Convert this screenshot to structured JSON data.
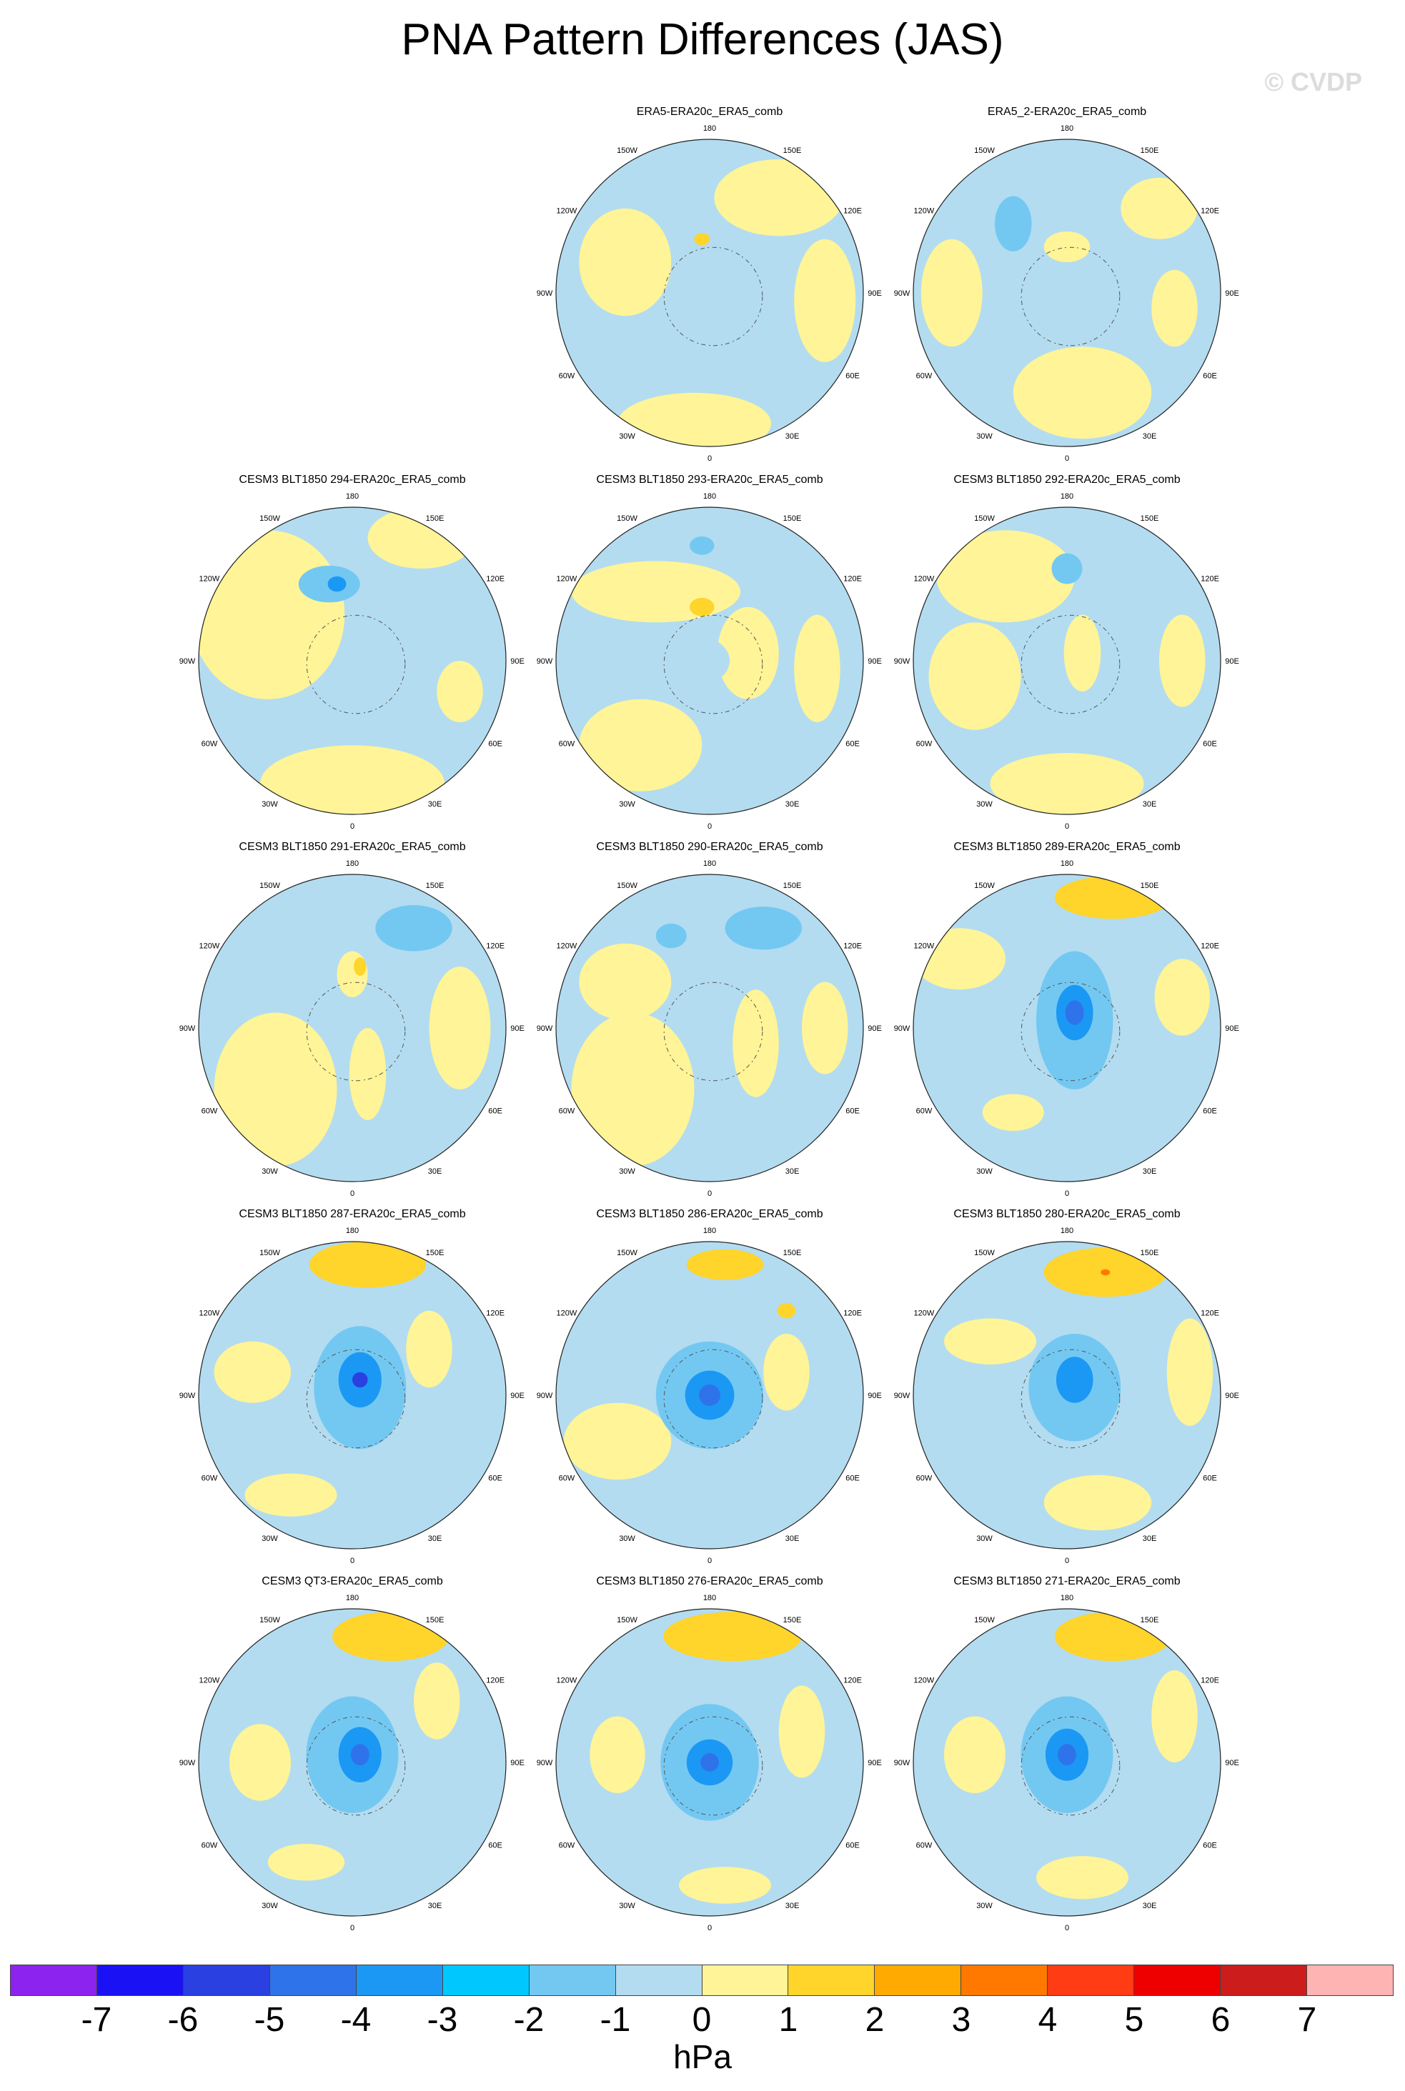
{
  "figure": {
    "title": "PNA Pattern Differences (JAS)",
    "watermark": "© CVDP",
    "units": "hPa"
  },
  "longitude_labels": [
    "180",
    "150E",
    "120E",
    "90E",
    "60E",
    "30E",
    "0",
    "30W",
    "60W",
    "90W",
    "120W",
    "150W"
  ],
  "colors": {
    "ocean_neutral_neg": "#b3dcf0",
    "neutral_pos": "#fff497",
    "ocean_outline": "#555555"
  },
  "colorbar": {
    "ticks": [
      "-7",
      "-6",
      "-5",
      "-4",
      "-3",
      "-2",
      "-1",
      "0",
      "1",
      "2",
      "3",
      "4",
      "5",
      "6",
      "7"
    ],
    "colors": [
      "#8c23ee",
      "#1a12f4",
      "#2a40e0",
      "#2f73ea",
      "#1b98f4",
      "#00c8ff",
      "#73c8f2",
      "#b3dcf0",
      "#fff497",
      "#ffd42b",
      "#ffaa00",
      "#ff7800",
      "#ff3c14",
      "#ee0000",
      "#cc1c1c",
      "#ffb4b4"
    ]
  },
  "panels": [
    {
      "title": "ERA5-ERA20c_ERA5_comb",
      "row": 0,
      "col": 1,
      "blobs": [
        [
          "#fff497",
          0.45,
          0.62,
          0.42,
          0.25
        ],
        [
          "#fff497",
          -0.55,
          0.2,
          0.3,
          0.35
        ],
        [
          "#fff497",
          0.75,
          -0.05,
          0.2,
          0.4
        ],
        [
          "#fff497",
          -0.1,
          -0.85,
          0.5,
          0.2
        ],
        [
          "#ffd42b",
          -0.05,
          0.35,
          0.05,
          0.04
        ],
        [
          "#b3dcf0",
          -0.05,
          0.05,
          0.22,
          0.22
        ]
      ]
    },
    {
      "title": "ERA5_2-ERA20c_ERA5_comb",
      "row": 0,
      "col": 2,
      "blobs": [
        [
          "#73c8f2",
          -0.35,
          0.45,
          0.12,
          0.18
        ],
        [
          "#fff497",
          0.6,
          0.55,
          0.25,
          0.2
        ],
        [
          "#fff497",
          -0.75,
          0.0,
          0.2,
          0.35
        ],
        [
          "#fff497",
          0.1,
          -0.65,
          0.45,
          0.3
        ],
        [
          "#fff497",
          0.7,
          -0.1,
          0.15,
          0.25
        ],
        [
          "#fff497",
          0.0,
          0.3,
          0.15,
          0.1
        ]
      ]
    },
    {
      "title": "CESM3 BLT1850 294-ERA20c_ERA5_comb",
      "row": 1,
      "col": 0,
      "blobs": [
        [
          "#fff497",
          -0.55,
          0.3,
          0.5,
          0.55
        ],
        [
          "#fff497",
          0.45,
          0.8,
          0.35,
          0.2
        ],
        [
          "#fff497",
          0.0,
          -0.8,
          0.6,
          0.25
        ],
        [
          "#73c8f2",
          -0.15,
          0.5,
          0.2,
          0.12
        ],
        [
          "#1b98f4",
          -0.1,
          0.5,
          0.06,
          0.05
        ],
        [
          "#fff497",
          0.7,
          -0.2,
          0.15,
          0.2
        ]
      ]
    },
    {
      "title": "CESM3 BLT1850 293-ERA20c_ERA5_comb",
      "row": 1,
      "col": 1,
      "blobs": [
        [
          "#fff497",
          -0.35,
          0.45,
          0.55,
          0.2
        ],
        [
          "#fff497",
          0.25,
          0.05,
          0.2,
          0.3
        ],
        [
          "#fff497",
          -0.45,
          -0.55,
          0.4,
          0.3
        ],
        [
          "#fff497",
          0.7,
          -0.05,
          0.15,
          0.35
        ],
        [
          "#73c8f2",
          -0.05,
          0.75,
          0.08,
          0.06
        ],
        [
          "#ffd42b",
          -0.05,
          0.35,
          0.08,
          0.06
        ],
        [
          "#b3dcf0",
          -0.05,
          0.0,
          0.18,
          0.15
        ]
      ]
    },
    {
      "title": "CESM3 BLT1850 292-ERA20c_ERA5_comb",
      "row": 1,
      "col": 2,
      "blobs": [
        [
          "#fff497",
          -0.4,
          0.55,
          0.45,
          0.3
        ],
        [
          "#fff497",
          -0.6,
          -0.1,
          0.3,
          0.35
        ],
        [
          "#fff497",
          0.0,
          -0.8,
          0.5,
          0.2
        ],
        [
          "#fff497",
          0.1,
          0.05,
          0.12,
          0.25
        ],
        [
          "#fff497",
          0.75,
          0.0,
          0.15,
          0.3
        ],
        [
          "#73c8f2",
          0.0,
          0.6,
          0.1,
          0.1
        ]
      ]
    },
    {
      "title": "CESM3 BLT1850 291-ERA20c_ERA5_comb",
      "row": 2,
      "col": 0,
      "blobs": [
        [
          "#fff497",
          -0.5,
          -0.4,
          0.4,
          0.5
        ],
        [
          "#fff497",
          0.7,
          0.0,
          0.2,
          0.4
        ],
        [
          "#fff497",
          0.1,
          -0.3,
          0.12,
          0.3
        ],
        [
          "#fff497",
          0.0,
          0.35,
          0.1,
          0.15
        ],
        [
          "#73c8f2",
          0.4,
          0.65,
          0.25,
          0.15
        ],
        [
          "#ffd42b",
          0.05,
          0.4,
          0.04,
          0.06
        ]
      ]
    },
    {
      "title": "CESM3 BLT1850 290-ERA20c_ERA5_comb",
      "row": 2,
      "col": 1,
      "blobs": [
        [
          "#fff497",
          -0.5,
          -0.4,
          0.4,
          0.5
        ],
        [
          "#fff497",
          -0.55,
          0.3,
          0.3,
          0.25
        ],
        [
          "#fff497",
          0.3,
          -0.1,
          0.15,
          0.35
        ],
        [
          "#fff497",
          0.75,
          0.0,
          0.15,
          0.3
        ],
        [
          "#73c8f2",
          0.35,
          0.65,
          0.25,
          0.14
        ],
        [
          "#73c8f2",
          -0.25,
          0.6,
          0.1,
          0.08
        ]
      ]
    },
    {
      "title": "CESM3 BLT1850 289-ERA20c_ERA5_comb",
      "row": 2,
      "col": 2,
      "blobs": [
        [
          "#ffd42b",
          0.3,
          0.85,
          0.38,
          0.14
        ],
        [
          "#fff497",
          -0.7,
          0.45,
          0.3,
          0.2
        ],
        [
          "#fff497",
          0.75,
          0.2,
          0.18,
          0.25
        ],
        [
          "#fff497",
          -0.35,
          -0.55,
          0.2,
          0.12
        ],
        [
          "#73c8f2",
          0.05,
          0.05,
          0.25,
          0.45
        ],
        [
          "#1b98f4",
          0.05,
          0.1,
          0.12,
          0.18
        ],
        [
          "#2f73ea",
          0.05,
          0.1,
          0.06,
          0.08
        ]
      ]
    },
    {
      "title": "CESM3 BLT1850 287-ERA20c_ERA5_comb",
      "row": 3,
      "col": 0,
      "blobs": [
        [
          "#ffd42b",
          0.1,
          0.85,
          0.38,
          0.15
        ],
        [
          "#fff497",
          -0.65,
          0.15,
          0.25,
          0.2
        ],
        [
          "#fff497",
          0.5,
          0.3,
          0.15,
          0.25
        ],
        [
          "#fff497",
          -0.4,
          -0.65,
          0.3,
          0.14
        ],
        [
          "#73c8f2",
          0.05,
          0.05,
          0.3,
          0.4
        ],
        [
          "#1b98f4",
          0.05,
          0.1,
          0.14,
          0.18
        ],
        [
          "#2a40e0",
          0.05,
          0.1,
          0.05,
          0.05
        ]
      ]
    },
    {
      "title": "CESM3 BLT1850 286-ERA20c_ERA5_comb",
      "row": 3,
      "col": 1,
      "blobs": [
        [
          "#ffd42b",
          0.1,
          0.85,
          0.25,
          0.1
        ],
        [
          "#ffd42b",
          0.5,
          0.55,
          0.06,
          0.05
        ],
        [
          "#fff497",
          -0.6,
          -0.3,
          0.35,
          0.25
        ],
        [
          "#fff497",
          0.5,
          0.15,
          0.15,
          0.25
        ],
        [
          "#73c8f2",
          0.0,
          0.0,
          0.35,
          0.35
        ],
        [
          "#1b98f4",
          0.0,
          0.0,
          0.16,
          0.16
        ],
        [
          "#2f73ea",
          0.0,
          0.0,
          0.07,
          0.07
        ]
      ]
    },
    {
      "title": "CESM3 BLT1850 280-ERA20c_ERA5_comb",
      "row": 3,
      "col": 2,
      "blobs": [
        [
          "#ffd42b",
          0.25,
          0.8,
          0.4,
          0.16
        ],
        [
          "#ff7800",
          0.25,
          0.8,
          0.03,
          0.02
        ],
        [
          "#fff497",
          -0.5,
          0.35,
          0.3,
          0.15
        ],
        [
          "#fff497",
          0.2,
          -0.7,
          0.35,
          0.18
        ],
        [
          "#fff497",
          0.8,
          0.15,
          0.15,
          0.35
        ],
        [
          "#73c8f2",
          0.05,
          0.05,
          0.3,
          0.35
        ],
        [
          "#1b98f4",
          0.05,
          0.1,
          0.12,
          0.15
        ]
      ]
    },
    {
      "title": "CESM3 QT3-ERA20c_ERA5_comb",
      "row": 4,
      "col": 0,
      "blobs": [
        [
          "#ffd42b",
          0.25,
          0.82,
          0.38,
          0.16
        ],
        [
          "#fff497",
          -0.6,
          0.0,
          0.2,
          0.25
        ],
        [
          "#fff497",
          0.55,
          0.4,
          0.15,
          0.25
        ],
        [
          "#fff497",
          -0.3,
          -0.65,
          0.25,
          0.12
        ],
        [
          "#73c8f2",
          0.0,
          0.05,
          0.3,
          0.38
        ],
        [
          "#1b98f4",
          0.05,
          0.05,
          0.14,
          0.18
        ],
        [
          "#2f73ea",
          0.05,
          0.05,
          0.06,
          0.07
        ]
      ]
    },
    {
      "title": "CESM3 BLT1850 276-ERA20c_ERA5_comb",
      "row": 4,
      "col": 1,
      "blobs": [
        [
          "#ffd42b",
          0.15,
          0.82,
          0.45,
          0.16
        ],
        [
          "#fff497",
          -0.6,
          0.05,
          0.18,
          0.25
        ],
        [
          "#fff497",
          0.6,
          0.2,
          0.15,
          0.3
        ],
        [
          "#fff497",
          0.1,
          -0.8,
          0.3,
          0.12
        ],
        [
          "#73c8f2",
          0.0,
          0.0,
          0.32,
          0.38
        ],
        [
          "#1b98f4",
          0.0,
          0.0,
          0.15,
          0.15
        ],
        [
          "#2f73ea",
          0.0,
          0.0,
          0.06,
          0.06
        ]
      ]
    },
    {
      "title": "CESM3 BLT1850 271-ERA20c_ERA5_comb",
      "row": 4,
      "col": 2,
      "blobs": [
        [
          "#ffd42b",
          0.3,
          0.82,
          0.38,
          0.16
        ],
        [
          "#fff497",
          -0.6,
          0.05,
          0.2,
          0.25
        ],
        [
          "#fff497",
          0.7,
          0.3,
          0.15,
          0.3
        ],
        [
          "#fff497",
          0.1,
          -0.75,
          0.3,
          0.14
        ],
        [
          "#73c8f2",
          0.0,
          0.05,
          0.3,
          0.38
        ],
        [
          "#1b98f4",
          0.0,
          0.05,
          0.14,
          0.17
        ],
        [
          "#2f73ea",
          0.0,
          0.05,
          0.06,
          0.07
        ]
      ]
    }
  ]
}
